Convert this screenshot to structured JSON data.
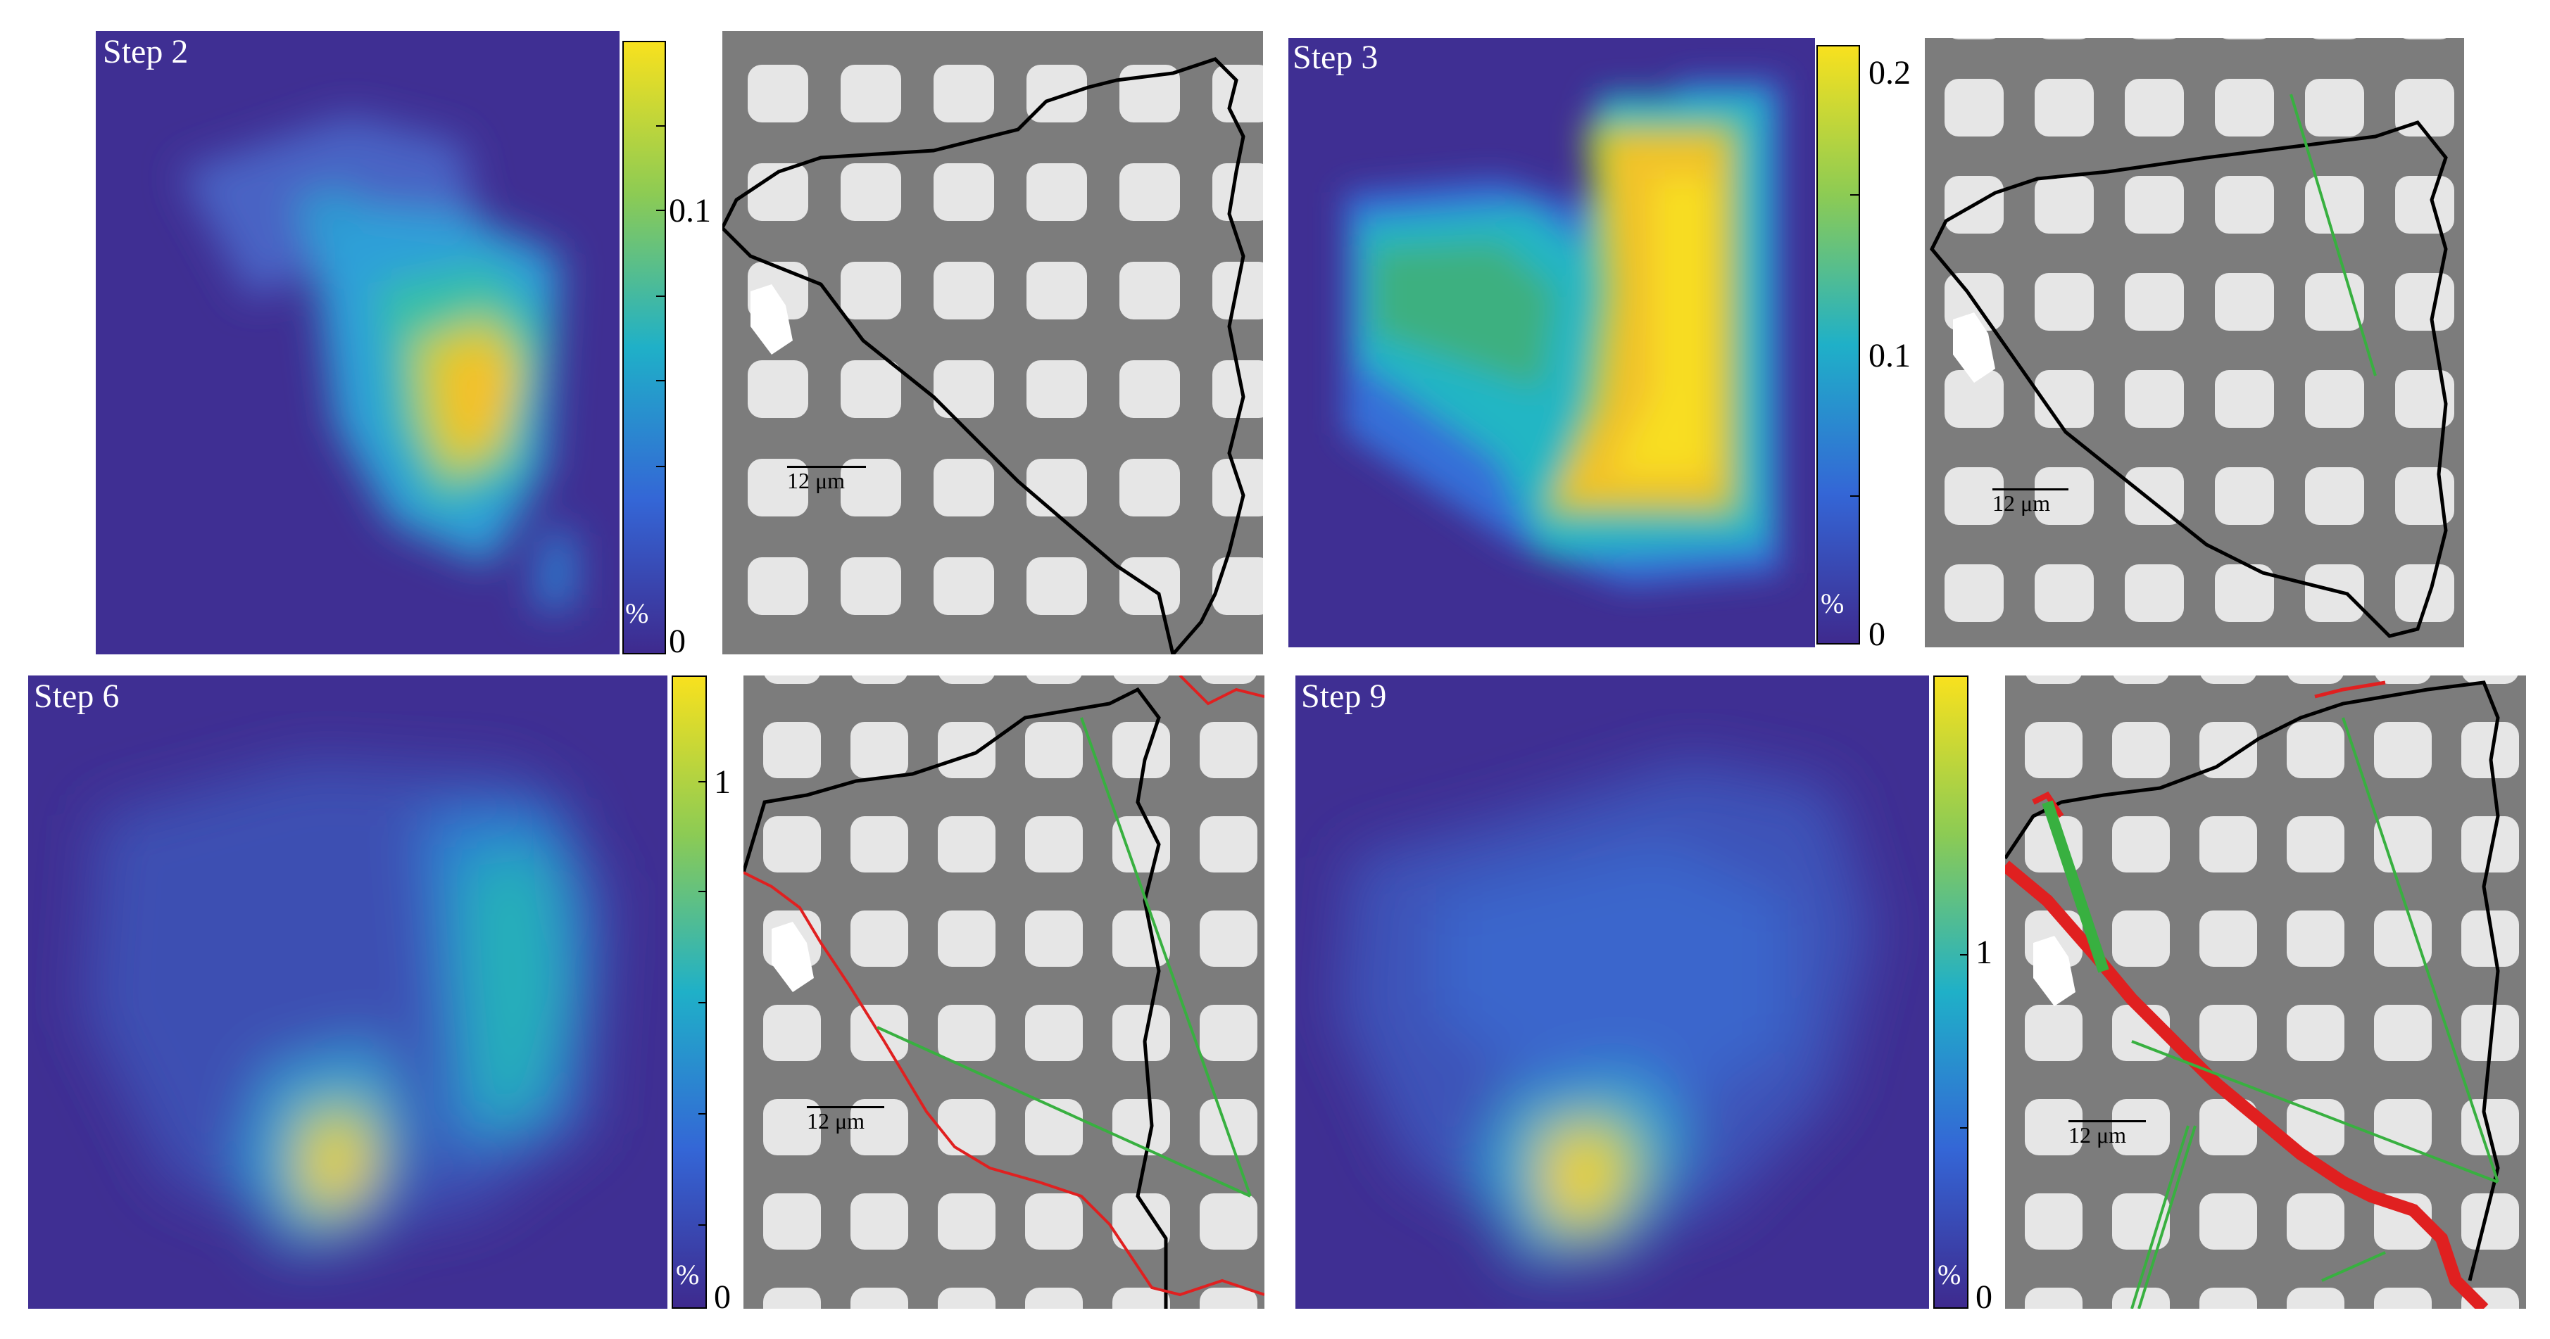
{
  "panels": [
    {
      "step_label": "Step 2",
      "colorbar": {
        "ticks": [
          "0",
          "0.1"
        ],
        "unit": "%"
      },
      "scale_label": "12 μm",
      "annotation_lines": {
        "black": true,
        "green": false,
        "red": false
      }
    },
    {
      "step_label": "Step 3",
      "colorbar": {
        "ticks": [
          "0",
          "0.1",
          "0.2"
        ],
        "unit": "%"
      },
      "scale_label": "12 μm",
      "annotation_lines": {
        "black": true,
        "green": true,
        "red": false
      }
    },
    {
      "step_label": "Step 6",
      "colorbar": {
        "ticks": [
          "0",
          "1"
        ],
        "unit": "%"
      },
      "scale_label": "12 μm",
      "annotation_lines": {
        "black": true,
        "green": true,
        "red": true
      }
    },
    {
      "step_label": "Step 9",
      "colorbar": {
        "ticks": [
          "0",
          "1"
        ],
        "unit": "%"
      },
      "scale_label": "12 μm",
      "annotation_lines": {
        "black": true,
        "green": true,
        "red": true
      }
    }
  ],
  "colors": {
    "colormap_low": "#3e2a8e",
    "colormap_mid": "#1fb0c8",
    "colormap_high": "#f8e11e",
    "crack_red": "#e02020",
    "line_green": "#38b040",
    "boundary_black": "#000000"
  }
}
